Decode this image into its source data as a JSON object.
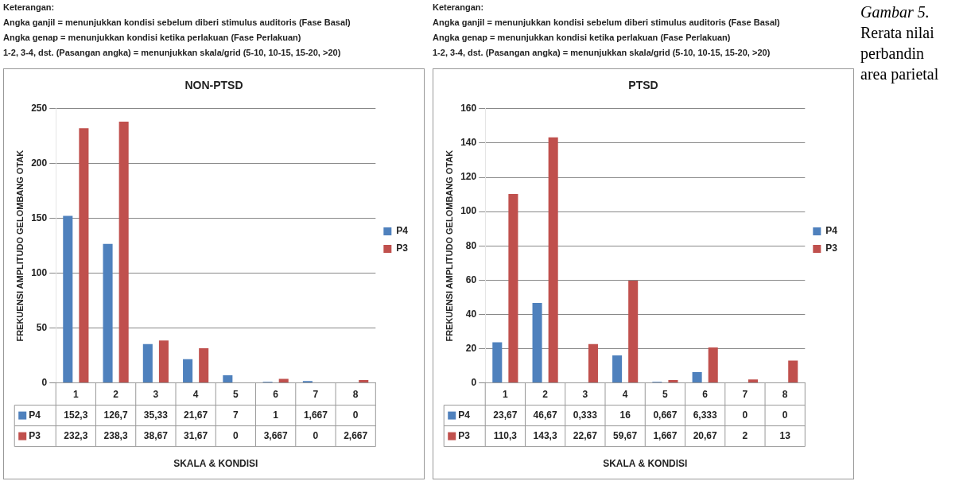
{
  "chart_data": [
    {
      "type": "bar",
      "title": "NON-PTSD",
      "xlabel": "SKALA & KONDISI",
      "ylabel": "FREKUENSI AMPLITUDO GELOMBANG OTAK",
      "annotations": [
        "Keterangan:",
        "Angka ganjil = menunjukkan kondisi sebelum diberi stimulus auditoris (Fase Basal)",
        "Angka genap = menunjukkan kondisi ketika perlakuan (Fase Perlakuan)",
        "1-2, 3-4, dst. (Pasangan angka) = menunjukkan skala/grid (5-10, 10-15, 15-20, >20)"
      ],
      "categories": [
        "1",
        "2",
        "3",
        "4",
        "5",
        "6",
        "7",
        "8"
      ],
      "series": [
        {
          "name": "P4",
          "color": "#4f81bd",
          "values": [
            152.3,
            126.7,
            35.33,
            21.67,
            7,
            1,
            1.667,
            0
          ],
          "value_labels": [
            "152,3",
            "126,7",
            "35,33",
            "21,67",
            "7",
            "1",
            "1,667",
            "0"
          ]
        },
        {
          "name": "P3",
          "color": "#c0504d",
          "values": [
            232.3,
            238.3,
            38.67,
            31.67,
            0,
            3.667,
            0,
            2.667
          ],
          "value_labels": [
            "232,3",
            "238,3",
            "38,67",
            "31,67",
            "0",
            "3,667",
            "0",
            "2,667"
          ]
        }
      ],
      "ylim": [
        0,
        250
      ],
      "yticks": [
        0,
        50,
        100,
        150,
        200,
        250
      ],
      "grid": "y",
      "legend": "right"
    },
    {
      "type": "bar",
      "title": "PTSD",
      "xlabel": "SKALA & KONDISI",
      "ylabel": "FREKUENSI AMPLITUDO GELOMBANG OTAK",
      "annotations": [
        "Keterangan:",
        "Angka ganjil = menunjukkan kondisi sebelum diberi stimulus auditoris (Fase Basal)",
        "Angka genap = menunjukkan kondisi ketika perlakuan (Fase Perlakuan)",
        "1-2, 3-4, dst. (Pasangan angka) = menunjukkan skala/grid (5-10, 10-15, 15-20, >20)",
        "Gambar 5. Rerata nilai perbandin",
        "area parietal"
      ],
      "categories": [
        "1",
        "2",
        "3",
        "4",
        "5",
        "6",
        "7",
        "8"
      ],
      "series": [
        {
          "name": "P4",
          "color": "#4f81bd",
          "values": [
            23.67,
            46.67,
            0.333,
            16,
            0.667,
            6.333,
            0,
            0
          ],
          "value_labels": [
            "23,67",
            "46,67",
            "0,333",
            "16",
            "0,667",
            "6,333",
            "0",
            "0"
          ]
        },
        {
          "name": "P3",
          "color": "#c0504d",
          "values": [
            110.3,
            143.3,
            22.67,
            59.67,
            1.667,
            20.67,
            2,
            13
          ],
          "value_labels": [
            "110,3",
            "143,3",
            "22,67",
            "59,67",
            "1,667",
            "20,67",
            "2",
            "13"
          ]
        }
      ],
      "ylim": [
        0,
        160
      ],
      "yticks": [
        0,
        20,
        40,
        60,
        80,
        100,
        120,
        140,
        160
      ],
      "grid": "y",
      "legend": "right"
    }
  ]
}
